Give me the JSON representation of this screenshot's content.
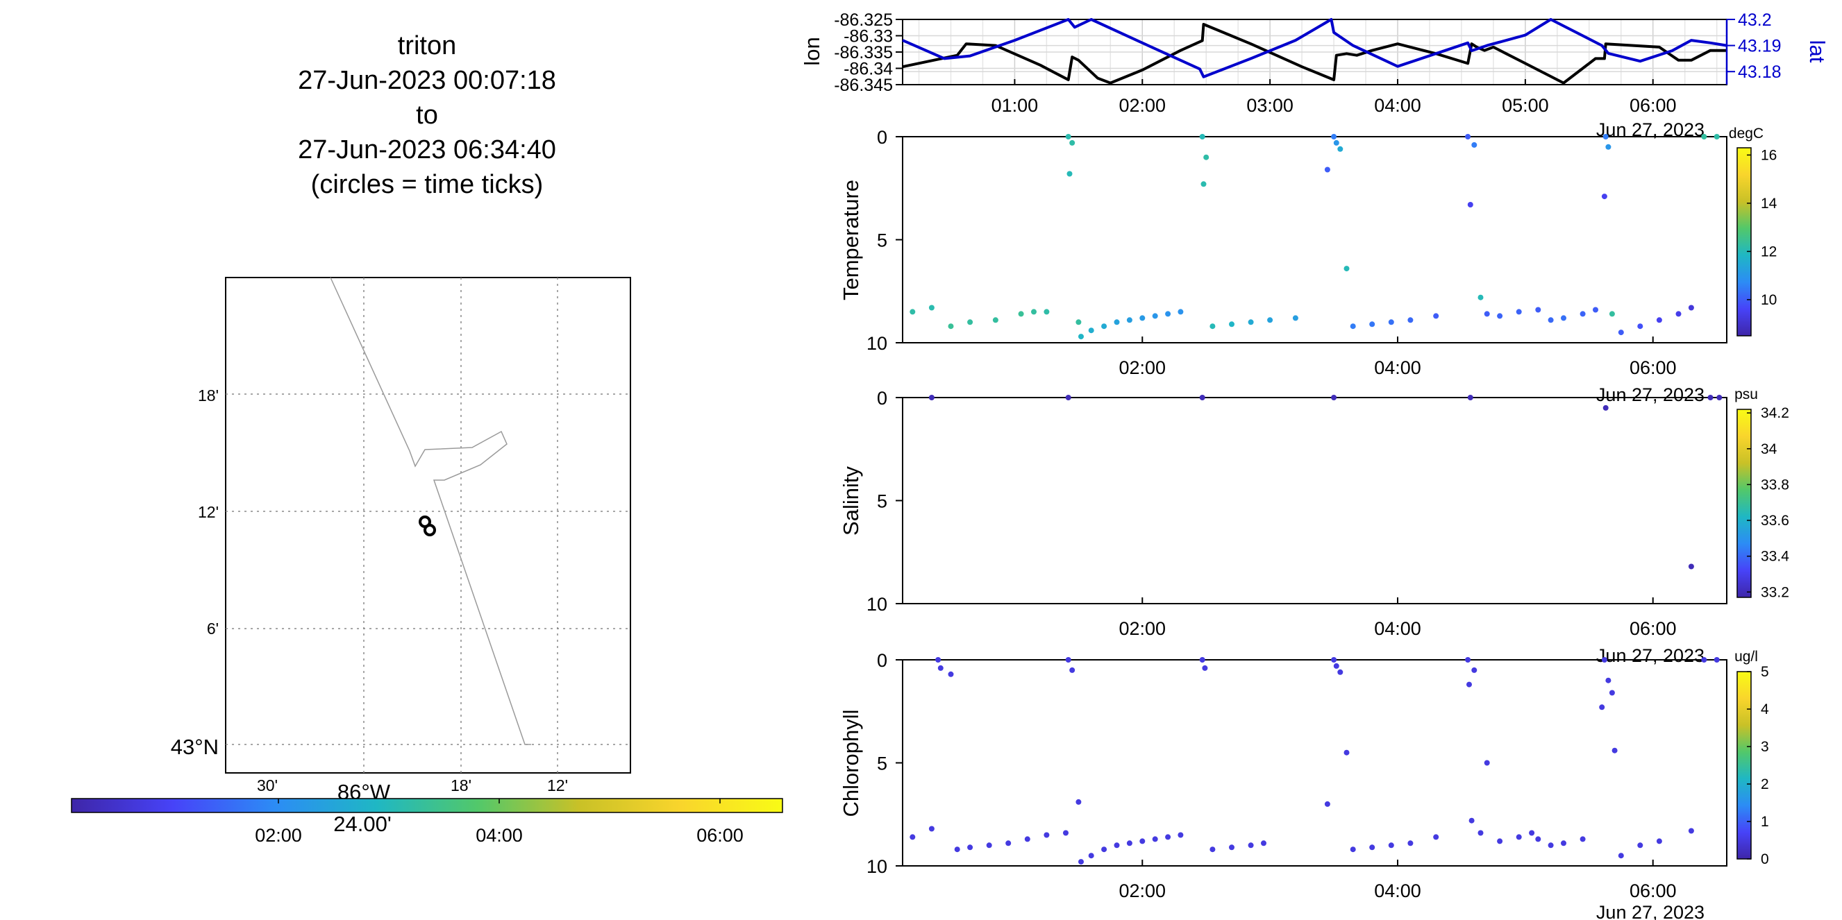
{
  "title": {
    "lines": [
      "triton",
      "27-Jun-2023 00:07:18",
      "to",
      "27-Jun-2023 06:34:40",
      "(circles = time ticks)"
    ]
  },
  "map": {
    "lat_ticks": [
      "18'",
      "12'",
      "6'",
      "43°N"
    ],
    "lon_ticks": [
      "30'",
      "86°W",
      "18'",
      "12'"
    ],
    "lon_sub_label": "24.00'",
    "time_colorbar_ticks": [
      "02:00",
      "04:00",
      "06:00"
    ],
    "colormap": [
      "#3e26a8",
      "#4743f8",
      "#2c8cf5",
      "#1fb7c4",
      "#52c86a",
      "#c9c127",
      "#f9d52c",
      "#f9fb15"
    ]
  },
  "chart_data": [
    {
      "type": "line",
      "panel": "position",
      "xlabel_date": "Jun 27, 2023",
      "x_ticks": [
        "01:00",
        "02:00",
        "03:00",
        "04:00",
        "05:00",
        "06:00"
      ],
      "x_range_hours": [
        0.122,
        6.578
      ],
      "left_axis": {
        "label": "lon",
        "ticks": [
          "-86.325",
          "-86.33",
          "-86.335",
          "-86.34",
          "-86.345"
        ],
        "ylim": [
          -86.345,
          -86.325
        ],
        "color": "#000000"
      },
      "right_axis": {
        "label": "lat",
        "ticks": [
          "43.2",
          "43.19",
          "43.18"
        ],
        "ylim": [
          43.175,
          43.2
        ],
        "color": "#0000cc"
      },
      "series": [
        {
          "name": "lon",
          "color": "#000000",
          "x": [
            0.122,
            0.55,
            0.62,
            0.85,
            1.2,
            1.42,
            1.45,
            1.5,
            1.65,
            1.75,
            2.0,
            2.3,
            2.47,
            2.48,
            2.85,
            3.25,
            3.5,
            3.52,
            3.6,
            3.68,
            3.8,
            4.0,
            4.3,
            4.55,
            4.58,
            4.62,
            4.68,
            4.75,
            4.85,
            5.0,
            5.3,
            5.55,
            5.62,
            5.63,
            6.05,
            6.2,
            6.3,
            6.45,
            6.578
          ],
          "y": [
            -86.3395,
            -86.336,
            -86.3325,
            -86.333,
            -86.339,
            -86.3435,
            -86.3365,
            -86.3375,
            -86.343,
            -86.3445,
            -86.3405,
            -86.3345,
            -86.3315,
            -86.3265,
            -86.3325,
            -86.3395,
            -86.3435,
            -86.336,
            -86.3355,
            -86.336,
            -86.3345,
            -86.3325,
            -86.3355,
            -86.3385,
            -86.3325,
            -86.3335,
            -86.3345,
            -86.3335,
            -86.3355,
            -86.3385,
            -86.3445,
            -86.337,
            -86.337,
            -86.3325,
            -86.3335,
            -86.3375,
            -86.3375,
            -86.3345,
            -86.3345
          ]
        },
        {
          "name": "lat",
          "color": "#0000cc",
          "x": [
            0.122,
            0.45,
            0.65,
            1.0,
            1.42,
            1.47,
            1.6,
            2.0,
            2.45,
            2.48,
            2.85,
            3.2,
            3.48,
            3.5,
            3.65,
            4.0,
            4.55,
            4.58,
            4.7,
            5.0,
            5.2,
            5.6,
            5.65,
            5.9,
            6.15,
            6.3,
            6.45,
            6.578
          ],
          "y": [
            43.192,
            43.185,
            43.186,
            43.192,
            43.2,
            43.197,
            43.2,
            43.191,
            43.181,
            43.178,
            43.185,
            43.192,
            43.2,
            43.195,
            43.19,
            43.182,
            43.191,
            43.188,
            43.19,
            43.194,
            43.2,
            43.19,
            43.187,
            43.184,
            43.188,
            43.192,
            43.191,
            43.19
          ]
        }
      ]
    },
    {
      "type": "scatter",
      "panel": "temperature",
      "ylabel": "Temperature",
      "y_ticks": [
        "0",
        "5",
        "10"
      ],
      "ylim": [
        0,
        10
      ],
      "x_ticks": [
        "02:00",
        "04:00",
        "06:00"
      ],
      "xlabel_date": "Jun 27, 2023",
      "colorbar": {
        "unit": "degC",
        "ticks": [
          "16",
          "14",
          "12",
          "10"
        ],
        "range": [
          8.5,
          16.3
        ]
      },
      "points": [
        [
          0.2,
          8.5,
          12.2
        ],
        [
          0.35,
          8.3,
          12.1
        ],
        [
          0.5,
          9.2,
          12.4
        ],
        [
          0.65,
          9.0,
          12.3
        ],
        [
          0.85,
          8.9,
          12.3
        ],
        [
          1.05,
          8.6,
          12.4
        ],
        [
          1.15,
          8.5,
          12.3
        ],
        [
          1.25,
          8.5,
          12.2
        ],
        [
          1.42,
          0.0,
          12.1
        ],
        [
          1.43,
          1.8,
          12.0
        ],
        [
          1.45,
          0.3,
          12.2
        ],
        [
          1.5,
          9.0,
          12.3
        ],
        [
          1.52,
          9.7,
          11.8
        ],
        [
          1.6,
          9.4,
          11.6
        ],
        [
          1.7,
          9.2,
          11.5
        ],
        [
          1.8,
          9.0,
          11.3
        ],
        [
          1.9,
          8.9,
          11.2
        ],
        [
          2.0,
          8.8,
          11.1
        ],
        [
          2.1,
          8.7,
          11.0
        ],
        [
          2.2,
          8.6,
          10.9
        ],
        [
          2.3,
          8.5,
          10.9
        ],
        [
          2.47,
          0.0,
          12.0
        ],
        [
          2.48,
          2.3,
          12.1
        ],
        [
          2.5,
          1.0,
          12.2
        ],
        [
          2.55,
          9.2,
          12.0
        ],
        [
          2.7,
          9.1,
          11.8
        ],
        [
          2.85,
          9.0,
          11.5
        ],
        [
          3.0,
          8.9,
          11.3
        ],
        [
          3.2,
          8.8,
          11.2
        ],
        [
          3.45,
          1.6,
          10.0
        ],
        [
          3.5,
          0.0,
          10.5
        ],
        [
          3.52,
          0.3,
          11.0
        ],
        [
          3.55,
          0.6,
          11.5
        ],
        [
          3.6,
          6.4,
          12.0
        ],
        [
          3.65,
          9.2,
          10.5
        ],
        [
          3.8,
          9.1,
          10.4
        ],
        [
          3.95,
          9.0,
          10.3
        ],
        [
          4.1,
          8.9,
          10.2
        ],
        [
          4.3,
          8.7,
          10.0
        ],
        [
          4.55,
          0.0,
          10.0
        ],
        [
          4.57,
          3.3,
          9.5
        ],
        [
          4.6,
          0.4,
          10.5
        ],
        [
          4.65,
          7.8,
          12.0
        ],
        [
          4.7,
          8.6,
          10.0
        ],
        [
          4.8,
          8.7,
          10.1
        ],
        [
          4.95,
          8.5,
          10.1
        ],
        [
          5.1,
          8.4,
          10.0
        ],
        [
          5.2,
          8.9,
          10.2
        ],
        [
          5.3,
          8.8,
          10.3
        ],
        [
          5.45,
          8.6,
          10.1
        ],
        [
          5.55,
          8.4,
          10.0
        ],
        [
          5.62,
          2.9,
          9.5
        ],
        [
          5.63,
          0.0,
          10.5
        ],
        [
          5.65,
          0.5,
          11.0
        ],
        [
          5.68,
          8.6,
          12.3
        ],
        [
          5.75,
          9.5,
          10.0
        ],
        [
          5.9,
          9.2,
          9.8
        ],
        [
          6.05,
          8.9,
          9.5
        ],
        [
          6.2,
          8.6,
          9.4
        ],
        [
          6.3,
          8.3,
          9.2
        ],
        [
          6.4,
          0.0,
          12.3
        ],
        [
          6.5,
          0.0,
          12.2
        ]
      ]
    },
    {
      "type": "scatter",
      "panel": "salinity",
      "ylabel": "Salinity",
      "y_ticks": [
        "0",
        "5",
        "10"
      ],
      "ylim": [
        0,
        10
      ],
      "x_ticks": [
        "02:00",
        "04:00",
        "06:00"
      ],
      "xlabel_date": "Jun 27, 2023",
      "colorbar": {
        "unit": "psu",
        "ticks": [
          "34.2",
          "34",
          "33.8",
          "33.6",
          "33.4",
          "33.2"
        ],
        "range": [
          33.17,
          34.22
        ]
      },
      "points": [
        [
          0.35,
          0.0,
          33.2
        ],
        [
          1.42,
          0.0,
          33.2
        ],
        [
          2.47,
          0.0,
          33.2
        ],
        [
          3.5,
          0.0,
          33.2
        ],
        [
          4.57,
          0.0,
          33.2
        ],
        [
          5.63,
          0.5,
          33.2
        ],
        [
          6.3,
          8.2,
          33.2
        ],
        [
          6.45,
          0.0,
          33.2
        ],
        [
          6.52,
          0.0,
          33.2
        ]
      ]
    },
    {
      "type": "scatter",
      "panel": "chlorophyll",
      "ylabel": "Chlorophyll",
      "y_ticks": [
        "0",
        "5",
        "10"
      ],
      "ylim": [
        0,
        10
      ],
      "x_ticks": [
        "02:00",
        "04:00",
        "06:00"
      ],
      "xlabel_date": "Jun 27, 2023",
      "colorbar": {
        "unit": "ug/l",
        "ticks": [
          "5",
          "4",
          "3",
          "2",
          "1",
          "0"
        ],
        "range": [
          0,
          5
        ]
      },
      "points": [
        [
          0.2,
          8.6,
          0.5
        ],
        [
          0.35,
          8.2,
          0.5
        ],
        [
          0.4,
          0.0,
          0.5
        ],
        [
          0.42,
          0.4,
          0.5
        ],
        [
          0.5,
          0.7,
          0.5
        ],
        [
          0.55,
          9.2,
          0.5
        ],
        [
          0.65,
          9.1,
          0.5
        ],
        [
          0.8,
          9.0,
          0.5
        ],
        [
          0.95,
          8.9,
          0.5
        ],
        [
          1.1,
          8.7,
          0.5
        ],
        [
          1.25,
          8.5,
          0.5
        ],
        [
          1.4,
          8.4,
          0.5
        ],
        [
          1.42,
          0.0,
          0.5
        ],
        [
          1.45,
          0.5,
          0.5
        ],
        [
          1.5,
          6.9,
          0.5
        ],
        [
          1.52,
          9.8,
          0.5
        ],
        [
          1.6,
          9.5,
          0.5
        ],
        [
          1.7,
          9.2,
          0.5
        ],
        [
          1.8,
          9.0,
          0.5
        ],
        [
          1.9,
          8.9,
          0.5
        ],
        [
          2.0,
          8.8,
          0.5
        ],
        [
          2.1,
          8.7,
          0.5
        ],
        [
          2.2,
          8.6,
          0.5
        ],
        [
          2.3,
          8.5,
          0.5
        ],
        [
          2.47,
          0.0,
          0.5
        ],
        [
          2.49,
          0.4,
          0.5
        ],
        [
          2.55,
          9.2,
          0.5
        ],
        [
          2.7,
          9.1,
          0.5
        ],
        [
          2.85,
          9.0,
          0.5
        ],
        [
          2.95,
          8.9,
          0.5
        ],
        [
          3.45,
          7.0,
          0.5
        ],
        [
          3.5,
          0.0,
          0.5
        ],
        [
          3.52,
          0.3,
          0.5
        ],
        [
          3.55,
          0.6,
          0.5
        ],
        [
          3.6,
          4.5,
          0.5
        ],
        [
          3.65,
          9.2,
          0.5
        ],
        [
          3.8,
          9.1,
          0.5
        ],
        [
          3.95,
          9.0,
          0.5
        ],
        [
          4.1,
          8.9,
          0.5
        ],
        [
          4.3,
          8.6,
          0.5
        ],
        [
          4.55,
          0.0,
          0.5
        ],
        [
          4.56,
          1.2,
          0.5
        ],
        [
          4.58,
          7.8,
          0.5
        ],
        [
          4.6,
          0.5,
          0.5
        ],
        [
          4.65,
          8.4,
          0.5
        ],
        [
          4.7,
          5.0,
          0.5
        ],
        [
          4.8,
          8.8,
          0.5
        ],
        [
          4.95,
          8.6,
          0.5
        ],
        [
          5.05,
          8.4,
          0.5
        ],
        [
          5.1,
          8.7,
          0.5
        ],
        [
          5.2,
          9.0,
          0.5
        ],
        [
          5.3,
          8.9,
          0.5
        ],
        [
          5.45,
          8.7,
          0.5
        ],
        [
          5.6,
          2.3,
          0.5
        ],
        [
          5.62,
          0.0,
          0.5
        ],
        [
          5.65,
          1.0,
          0.5
        ],
        [
          5.68,
          1.6,
          0.5
        ],
        [
          5.7,
          4.4,
          0.5
        ],
        [
          5.75,
          9.5,
          0.5
        ],
        [
          5.9,
          9.0,
          0.5
        ],
        [
          6.05,
          8.8,
          0.5
        ],
        [
          6.3,
          8.3,
          0.5
        ],
        [
          6.4,
          0.0,
          0.5
        ],
        [
          6.5,
          0.0,
          0.5
        ]
      ]
    }
  ]
}
